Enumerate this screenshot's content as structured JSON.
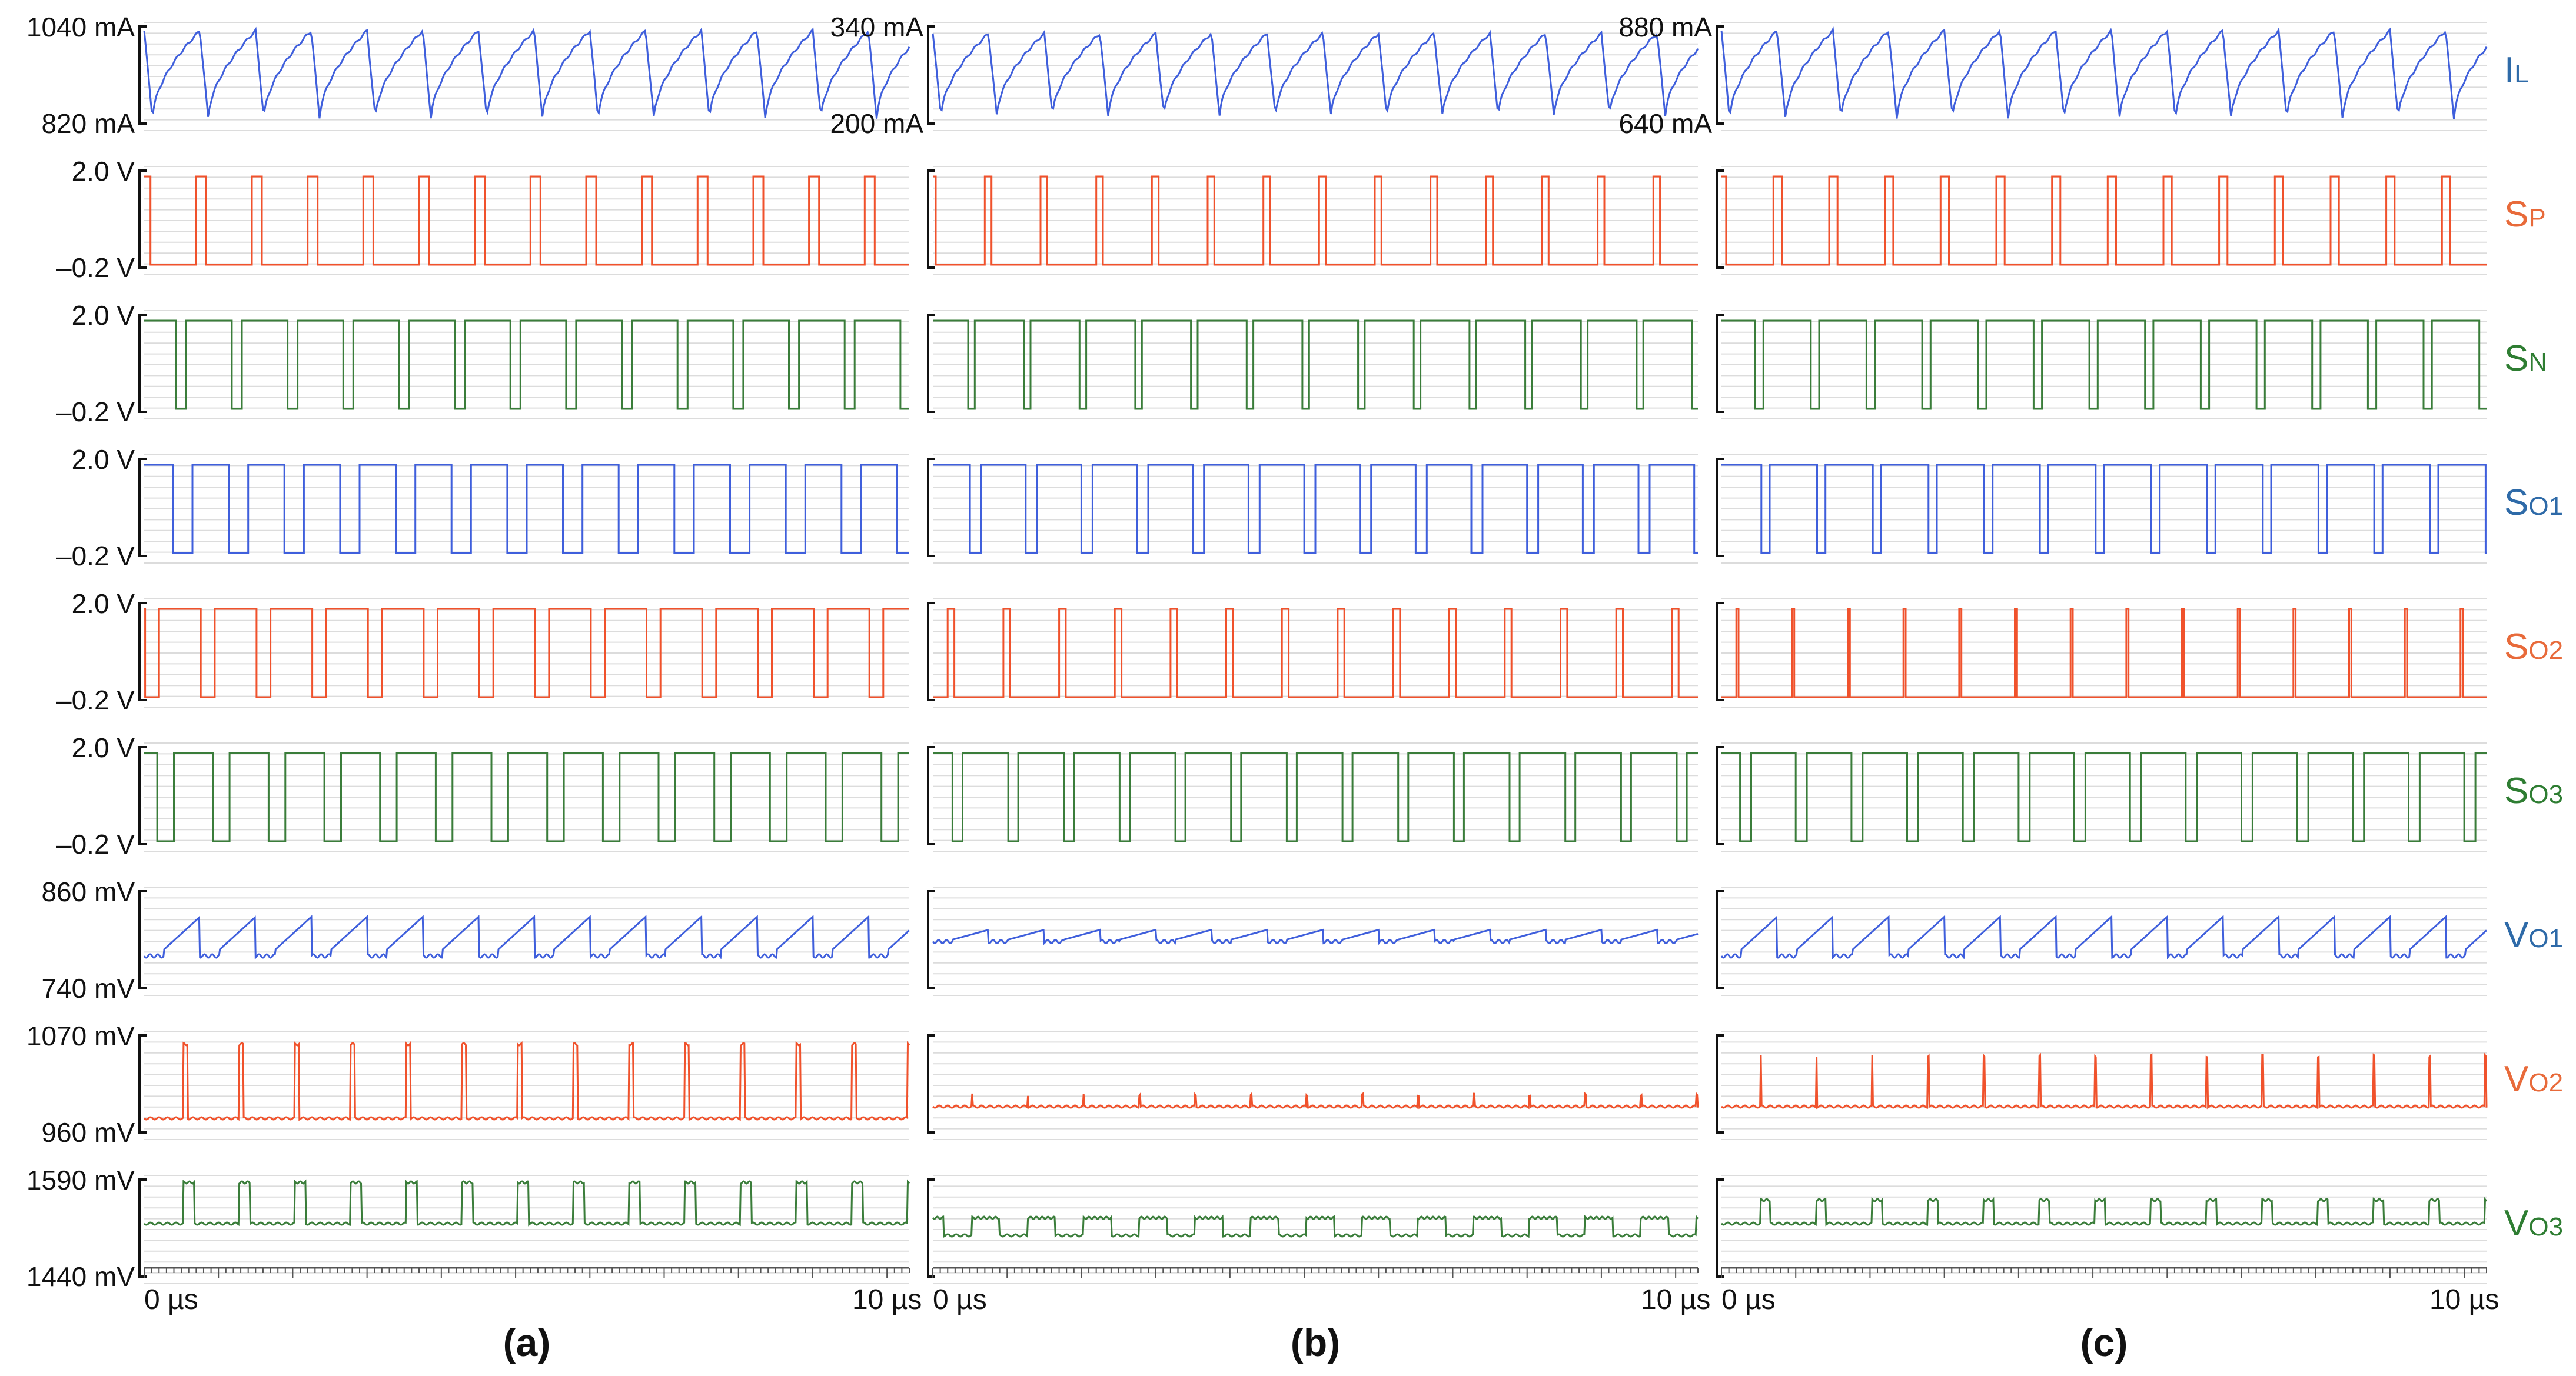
{
  "chart_data": {
    "type": "line",
    "description_kind": "multi-panel oscilloscope-style timing diagram",
    "x_unit": "µs",
    "x_range": [
      0,
      10
    ],
    "x_tick_labels": [
      "0 µs",
      "10 µs"
    ],
    "panel_labels": [
      "(a)",
      "(b)",
      "(c)"
    ],
    "colors": {
      "blue": "#3f5fdc",
      "orange": "#f0522c",
      "green": "#3a7d3a",
      "label_blue": "#2e6aa8",
      "label_orange": "#e86a3a",
      "label_green": "#2e7d32",
      "grid": "#dcdcdc"
    },
    "rows": [
      {
        "key": "IL",
        "label_main": "I",
        "label_sub": "L",
        "color": "blue",
        "kind": "inductor-current"
      },
      {
        "key": "SP",
        "label_main": "S",
        "label_sub": "P",
        "color": "orange",
        "kind": "gate"
      },
      {
        "key": "SN",
        "label_main": "S",
        "label_sub": "N",
        "color": "green",
        "kind": "gate"
      },
      {
        "key": "SO1",
        "label_main": "S",
        "label_sub": "O1",
        "color": "blue",
        "kind": "gate"
      },
      {
        "key": "SO2",
        "label_main": "S",
        "label_sub": "O2",
        "color": "orange",
        "kind": "gate"
      },
      {
        "key": "SO3",
        "label_main": "S",
        "label_sub": "O3",
        "color": "green",
        "kind": "gate"
      },
      {
        "key": "VO1",
        "label_main": "V",
        "label_sub": "O1",
        "color": "blue",
        "kind": "output-voltage"
      },
      {
        "key": "VO2",
        "label_main": "V",
        "label_sub": "O2",
        "color": "orange",
        "kind": "output-voltage"
      },
      {
        "key": "VO3",
        "label_main": "V",
        "label_sub": "O3",
        "color": "green",
        "kind": "output-voltage"
      }
    ],
    "panels": [
      {
        "label": "(a)",
        "switching_period_us": 0.75,
        "scales": {
          "IL": [
            "1040 mA",
            "820 mA"
          ],
          "SP": [
            "2.0 V",
            "–0.2 V"
          ],
          "SN": [
            "2.0 V",
            "–0.2 V"
          ],
          "SO1": [
            "2.0 V",
            "–0.2 V"
          ],
          "SO2": [
            "2.0 V",
            "–0.2 V"
          ],
          "SO3": [
            "2.0 V",
            "–0.2 V"
          ],
          "VO1": [
            "860 mV",
            "740 mV"
          ],
          "VO2": [
            "1070 mV",
            "960 mV"
          ],
          "VO3": [
            "1590 mV",
            "1440 mV"
          ]
        },
        "duty": {
          "SP": 0.18,
          "SN": 0.82,
          "SO1": 0.65,
          "SO2": 0.75,
          "SO3": 0.7
        },
        "IL_mA": {
          "min": 820,
          "max": 1030
        },
        "VO1_mV": {
          "high": 820,
          "low": 760,
          "amp": 1.0
        },
        "VO2_mV": {
          "base": 975,
          "spike": 1055
        },
        "VO3_mV": {
          "base": 1505,
          "spike": 1575
        }
      },
      {
        "label": "(b)",
        "switching_period_us": 0.75,
        "scales": {
          "IL": [
            "340 mA",
            "200 mA"
          ],
          "SP": [],
          "SN": [],
          "SO1": [],
          "SO2": [],
          "SO3": [],
          "VO1": [],
          "VO2": [],
          "VO3": []
        },
        "duty": {
          "SP": 0.12,
          "SN": 0.88,
          "SO1": 0.8,
          "SO2": 0.12,
          "SO3": 0.82
        },
        "IL_mA": {
          "min": 215,
          "max": 335
        },
        "VO1_mV": {
          "high": 795,
          "low": 785,
          "amp": 0.3
        },
        "VO2_mV": {
          "base": 975,
          "spike": 995
        },
        "VO3_mV": {
          "base": 1490,
          "spike": 1510
        }
      },
      {
        "label": "(c)",
        "switching_period_us": 0.75,
        "scales": {
          "IL": [
            "880 mA",
            "640 mA"
          ],
          "SP": [],
          "SN": [],
          "SO1": [],
          "SO2": [],
          "SO3": [],
          "VO1": [],
          "VO2": [],
          "VO3": []
        },
        "duty": {
          "SP": 0.15,
          "SN": 0.85,
          "SO1": 0.85,
          "SO2": 0.04,
          "SO3": 0.8
        },
        "IL_mA": {
          "min": 655,
          "max": 870
        },
        "VO1_mV": {
          "high": 805,
          "low": 760,
          "amp": 1.0
        },
        "VO2_mV": {
          "base": 975,
          "spike": 1040
        },
        "VO3_mV": {
          "base": 1495,
          "spike": 1555
        }
      }
    ]
  }
}
